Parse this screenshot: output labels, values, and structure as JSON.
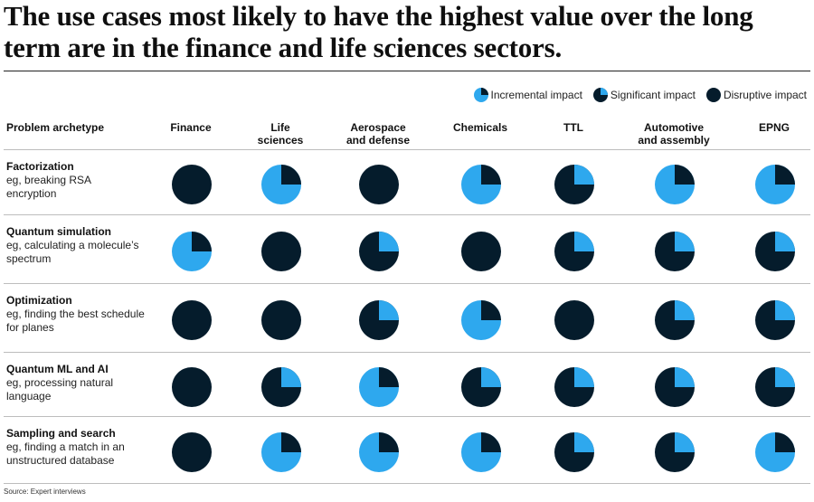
{
  "title": "The use cases most likely to have the highest value over the long term are in the finance and life sciences sectors.",
  "source": "Source: Expert interviews",
  "colors": {
    "light": "#2ea8ee",
    "dark": "#051c2c"
  },
  "legend": [
    {
      "label": "Incremental impact",
      "level": 1
    },
    {
      "label": "Significant impact",
      "level": 2
    },
    {
      "label": "Disruptive impact",
      "level": 3
    }
  ],
  "chart_data": {
    "type": "table",
    "row_header": "Problem archetype",
    "columns": [
      "Finance",
      "Life\nsciences",
      "Aerospace\nand defense",
      "Chemicals",
      "TTL",
      "Automotive\nand assembly",
      "EPNG"
    ],
    "rows": [
      {
        "name": "Factorization",
        "desc": "eg, breaking RSA\nencryption",
        "values": [
          3,
          1,
          3,
          1,
          2,
          1,
          1
        ]
      },
      {
        "name": "Quantum simulation",
        "desc": "eg, calculating a molecule’s\nspectrum",
        "values": [
          1,
          3,
          2,
          3,
          2,
          2,
          2
        ]
      },
      {
        "name": "Optimization",
        "desc": "eg, finding the best schedule\nfor planes",
        "values": [
          3,
          3,
          2,
          1,
          3,
          2,
          2
        ]
      },
      {
        "name": "Quantum ML and AI",
        "desc": "eg, processing natural\nlanguage",
        "values": [
          3,
          2,
          1,
          2,
          2,
          2,
          2
        ]
      },
      {
        "name": "Sampling and search",
        "desc": "eg, finding a match in an\nunstructured database",
        "values": [
          3,
          1,
          1,
          1,
          2,
          2,
          1
        ]
      }
    ]
  }
}
